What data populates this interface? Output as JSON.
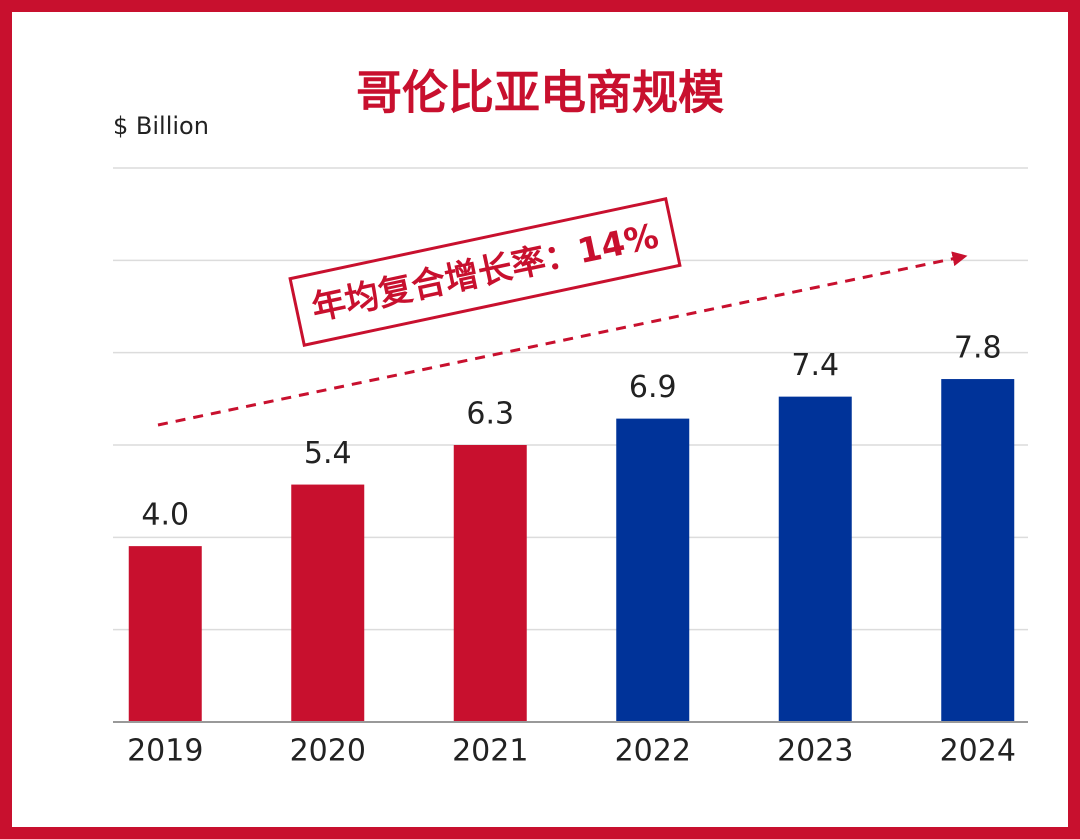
{
  "chart_data": {
    "type": "bar",
    "title": "哥伦比亚电商规模",
    "unit_label": "$ Billion",
    "annotation": "年均复合增长率：14%",
    "categories": [
      "2019",
      "2020",
      "2021",
      "2022",
      "2023",
      "2024"
    ],
    "values": [
      4.0,
      5.4,
      6.3,
      6.9,
      7.4,
      7.8
    ],
    "value_labels": [
      "4.0",
      "5.4",
      "6.3",
      "6.9",
      "7.4",
      "7.8"
    ],
    "colors": [
      "#c8102e",
      "#c8102e",
      "#c8102e",
      "#003399",
      "#003399",
      "#003399"
    ],
    "ylim": [
      0,
      12.6
    ],
    "gridlines": [
      2.1,
      4.2,
      6.3,
      8.4,
      10.5,
      12.6
    ],
    "grid": true
  }
}
